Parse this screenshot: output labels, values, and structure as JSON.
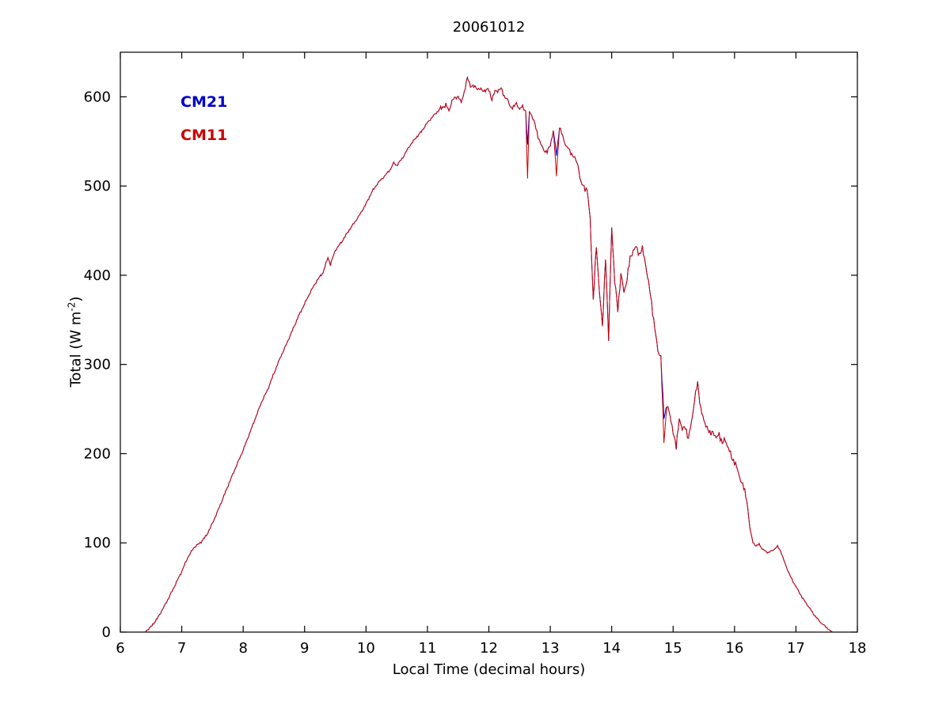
{
  "title": "20061012",
  "labels": {
    "ylabel_main": "Total (W m",
    "ylabel_sup": "-2",
    "ylabel_close": ")"
  },
  "chart_data": {
    "type": "line",
    "title": "20061012",
    "xlabel": "Local Time (decimal hours)",
    "ylabel": "Total (W m^-2)",
    "xlim": [
      6,
      18
    ],
    "ylim": [
      0,
      650
    ],
    "x_ticks": [
      6,
      7,
      8,
      9,
      10,
      11,
      12,
      13,
      14,
      15,
      16,
      17,
      18
    ],
    "y_ticks": [
      0,
      100,
      200,
      300,
      400,
      500,
      600
    ],
    "grid": false,
    "legend_position": "upper-left",
    "noise_regions": [
      {
        "from": 6.4,
        "to": 11.2,
        "amp": 1.6
      },
      {
        "from": 11.2,
        "to": 13.5,
        "amp": 3.0
      },
      {
        "from": 13.5,
        "to": 16.2,
        "amp": 5.0
      },
      {
        "from": 16.2,
        "to": 17.6,
        "amp": 1.2
      }
    ],
    "x": [
      6.4,
      6.5,
      6.6,
      6.7,
      6.8,
      6.9,
      7.0,
      7.1,
      7.2,
      7.3,
      7.4,
      7.5,
      7.6,
      7.7,
      7.8,
      7.9,
      8.0,
      8.1,
      8.2,
      8.3,
      8.4,
      8.5,
      8.6,
      8.7,
      8.8,
      8.9,
      9.0,
      9.1,
      9.2,
      9.3,
      9.38,
      9.42,
      9.5,
      9.6,
      9.7,
      9.8,
      9.9,
      10.0,
      10.1,
      10.2,
      10.3,
      10.4,
      10.45,
      10.5,
      10.6,
      10.7,
      10.8,
      10.9,
      11.0,
      11.1,
      11.2,
      11.3,
      11.35,
      11.4,
      11.5,
      11.55,
      11.6,
      11.65,
      11.7,
      11.8,
      11.9,
      12.0,
      12.05,
      12.1,
      12.2,
      12.25,
      12.3,
      12.35,
      12.4,
      12.45,
      12.5,
      12.55,
      12.6,
      12.63,
      12.66,
      12.7,
      12.75,
      12.8,
      12.85,
      12.9,
      12.95,
      13.0,
      13.05,
      13.1,
      13.15,
      13.2,
      13.25,
      13.3,
      13.35,
      13.4,
      13.45,
      13.5,
      13.55,
      13.6,
      13.65,
      13.7,
      13.75,
      13.8,
      13.85,
      13.9,
      13.95,
      14.0,
      14.05,
      14.1,
      14.15,
      14.2,
      14.25,
      14.3,
      14.35,
      14.4,
      14.45,
      14.5,
      14.55,
      14.6,
      14.65,
      14.7,
      14.75,
      14.8,
      14.85,
      14.9,
      14.95,
      15.0,
      15.05,
      15.1,
      15.15,
      15.2,
      15.25,
      15.3,
      15.35,
      15.4,
      15.45,
      15.5,
      15.55,
      15.6,
      15.65,
      15.7,
      15.75,
      15.8,
      15.85,
      15.9,
      15.95,
      16.0,
      16.05,
      16.1,
      16.15,
      16.2,
      16.25,
      16.3,
      16.35,
      16.4,
      16.45,
      16.5,
      16.55,
      16.6,
      16.65,
      16.7,
      16.75,
      16.8,
      16.85,
      16.9,
      16.95,
      17.0,
      17.05,
      17.1,
      17.15,
      17.2,
      17.25,
      17.3,
      17.35,
      17.4,
      17.45,
      17.5,
      17.55,
      17.6
    ],
    "series": [
      {
        "name": "CM21",
        "color": "#0000CC",
        "values": [
          0,
          6,
          15,
          27,
          40,
          54,
          68,
          84,
          95,
          100,
          108,
          122,
          138,
          155,
          172,
          188,
          204,
          222,
          240,
          258,
          272,
          290,
          307,
          322,
          338,
          354,
          368,
          382,
          394,
          403,
          420,
          412,
          428,
          437,
          448,
          458,
          468,
          480,
          494,
          504,
          511,
          519,
          526,
          523,
          532,
          544,
          553,
          561,
          571,
          579,
          586,
          591,
          584,
          596,
          601,
          593,
          606,
          621,
          613,
          610,
          607,
          608,
          597,
          606,
          609,
          601,
          597,
          589,
          588,
          593,
          586,
          589,
          584,
          545,
          584,
          579,
          569,
          556,
          546,
          540,
          538,
          546,
          562,
          535,
          566,
          556,
          546,
          541,
          536,
          531,
          524,
          503,
          499,
          496,
          462,
          372,
          432,
          383,
          341,
          422,
          327,
          455,
          392,
          362,
          401,
          381,
          396,
          419,
          428,
          431,
          424,
          429,
          414,
          391,
          369,
          341,
          316,
          309,
          240,
          256,
          241,
          226,
          206,
          241,
          226,
          231,
          216,
          236,
          261,
          279,
          251,
          236,
          231,
          221,
          226,
          216,
          223,
          211,
          216,
          206,
          196,
          191,
          181,
          171,
          161,
          149,
          116,
          101,
          96,
          99,
          93,
          91,
          89,
          91,
          93,
          96,
          91,
          81,
          72,
          64,
          57,
          51,
          45,
          39,
          34,
          29,
          24,
          19,
          15,
          11,
          8,
          5,
          2,
          0
        ]
      },
      {
        "name": "CM11",
        "color": "#CC0000",
        "values": [
          0,
          6,
          15,
          27,
          40,
          54,
          68,
          84,
          95,
          100,
          108,
          122,
          138,
          155,
          172,
          188,
          204,
          222,
          240,
          258,
          272,
          290,
          307,
          322,
          338,
          354,
          368,
          382,
          394,
          403,
          420,
          412,
          428,
          437,
          448,
          458,
          468,
          480,
          494,
          504,
          511,
          519,
          526,
          523,
          532,
          544,
          553,
          561,
          571,
          579,
          586,
          591,
          584,
          596,
          601,
          593,
          606,
          621,
          613,
          610,
          607,
          608,
          597,
          606,
          609,
          601,
          597,
          589,
          588,
          593,
          586,
          589,
          584,
          507,
          584,
          579,
          569,
          556,
          546,
          540,
          538,
          546,
          562,
          512,
          566,
          556,
          546,
          541,
          536,
          531,
          524,
          503,
          499,
          496,
          462,
          372,
          432,
          383,
          341,
          422,
          327,
          455,
          392,
          362,
          401,
          381,
          396,
          419,
          428,
          431,
          424,
          429,
          414,
          391,
          369,
          341,
          316,
          309,
          213,
          256,
          241,
          226,
          206,
          241,
          226,
          231,
          216,
          236,
          261,
          279,
          251,
          236,
          231,
          221,
          226,
          216,
          223,
          211,
          216,
          206,
          196,
          191,
          181,
          171,
          161,
          149,
          116,
          101,
          96,
          99,
          93,
          91,
          89,
          91,
          93,
          96,
          91,
          81,
          72,
          64,
          57,
          51,
          45,
          39,
          34,
          29,
          24,
          19,
          15,
          11,
          8,
          5,
          2,
          0
        ]
      }
    ]
  }
}
